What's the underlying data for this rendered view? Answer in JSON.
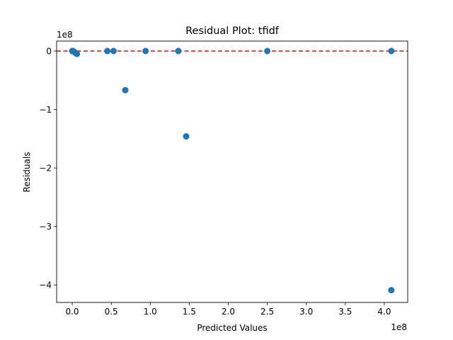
{
  "chart_data": {
    "type": "scatter",
    "title": "Residual Plot: tfidf",
    "xlabel": "Predicted Values",
    "ylabel": "Residuals",
    "x_offset_label": "1e8",
    "y_offset_label": "1e8",
    "x_scale": 100000000,
    "y_scale": 100000000,
    "xlim": [
      -0.2,
      4.3
    ],
    "ylim": [
      -4.3,
      0.17
    ],
    "x_ticks": [
      0.0,
      0.5,
      1.0,
      1.5,
      2.0,
      2.5,
      3.0,
      3.5,
      4.0
    ],
    "x_tick_labels": [
      "0.0",
      "0.5",
      "1.0",
      "1.5",
      "2.0",
      "2.5",
      "3.0",
      "3.5",
      "4.0"
    ],
    "y_ticks": [
      0,
      -1,
      -2,
      -3,
      -4
    ],
    "y_tick_labels": [
      "0",
      "−1",
      "−2",
      "−3",
      "−4"
    ],
    "grid": false,
    "reference_line": {
      "y": 0,
      "style": "dashed",
      "color": "#d62728"
    },
    "point_color": "#1f77b4",
    "points": [
      {
        "x": 0.0,
        "y": 0.0
      },
      {
        "x": 0.01,
        "y": 0.0
      },
      {
        "x": 0.02,
        "y": -0.01
      },
      {
        "x": 0.04,
        "y": -0.03
      },
      {
        "x": 0.06,
        "y": -0.05
      },
      {
        "x": 0.45,
        "y": 0.0
      },
      {
        "x": 0.53,
        "y": 0.0
      },
      {
        "x": 0.68,
        "y": -0.67
      },
      {
        "x": 0.94,
        "y": 0.0
      },
      {
        "x": 1.36,
        "y": 0.0
      },
      {
        "x": 1.46,
        "y": -1.46
      },
      {
        "x": 2.5,
        "y": 0.0
      },
      {
        "x": 4.09,
        "y": 0.0
      },
      {
        "x": 4.09,
        "y": -4.09
      }
    ]
  }
}
